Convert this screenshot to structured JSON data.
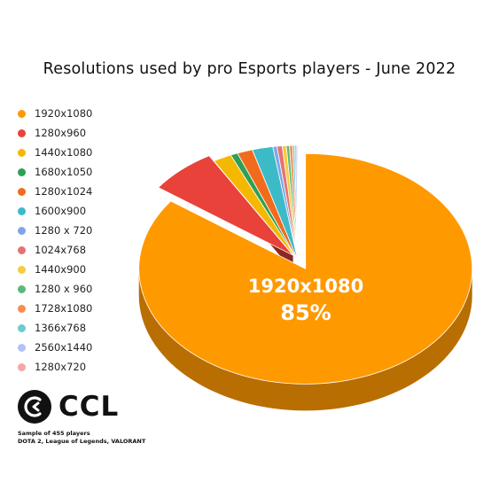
{
  "chart_data": {
    "type": "pie",
    "title": "Resolutions used by pro Esports players - June 2022",
    "categories": [
      "1920x1080",
      "1280x960",
      "1440x1080",
      "1680x1050",
      "1280x1024",
      "1600x900",
      "1280 x 720",
      "1024x768",
      "1440x900",
      "1280 x 960",
      "1728x1080",
      "1366x768",
      "2560x1440",
      "1280x720"
    ],
    "values": [
      85,
      6.6,
      1.8,
      0.7,
      1.5,
      2.0,
      0.4,
      0.5,
      0.4,
      0.3,
      0.3,
      0.2,
      0.2,
      0.1
    ],
    "colors": [
      "#FF9900",
      "#E8423A",
      "#F5B800",
      "#2EA055",
      "#F26B1D",
      "#3CBAC7",
      "#7FA6E8",
      "#E57373",
      "#F6CD3E",
      "#5CB87A",
      "#F98D52",
      "#6FCACC",
      "#AFC4F2",
      "#F4A7A7"
    ],
    "highlight_label": "1920x1080",
    "highlight_value": "85%",
    "legend_position": "left"
  },
  "logo": {
    "text": "CCL"
  },
  "note": {
    "line1": "Sample of 455 players",
    "line2": "DOTA 2, League of Legends, VALORANT"
  }
}
